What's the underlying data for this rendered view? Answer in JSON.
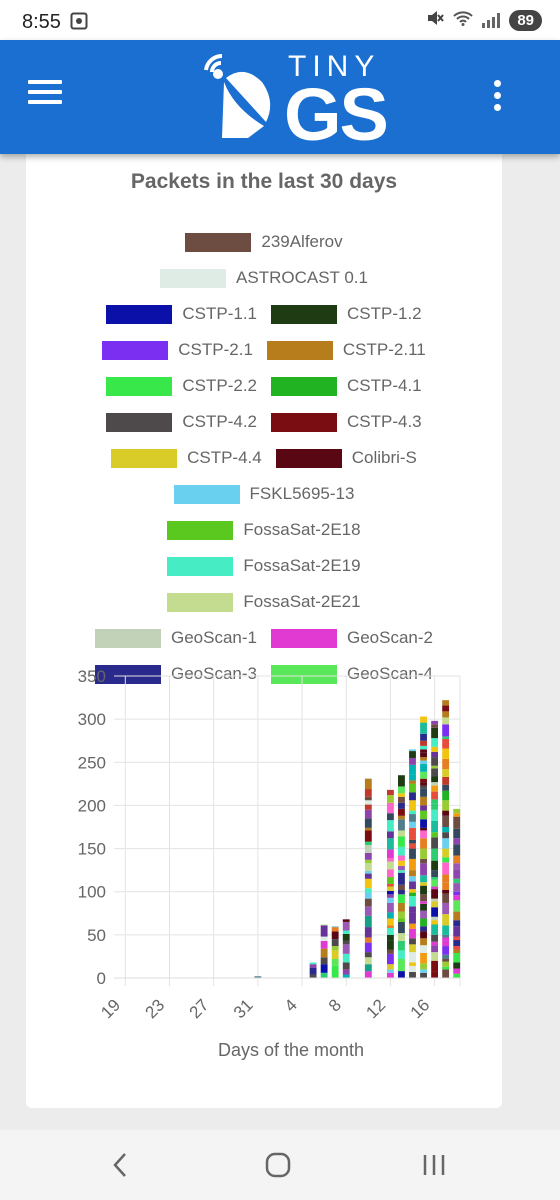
{
  "status_bar": {
    "time": "8:55",
    "battery": "89",
    "icons": [
      "screenshot-icon",
      "mute-icon",
      "wifi-icon",
      "signal-icon"
    ]
  },
  "app_bar": {
    "logo_top": "TINY",
    "logo_bottom": "GS",
    "menu_icon": "hamburger-menu-icon",
    "more_icon": "more-vertical-icon"
  },
  "card": {
    "title": "Packets in the last 30 days"
  },
  "legend": {
    "rows": [
      [
        {
          "label": "239Alferov",
          "color": "#6d4c41"
        }
      ],
      [
        {
          "label": "ASTROCAST 0.1",
          "color": "#dfece6"
        }
      ],
      [
        {
          "label": "CSTP-1.1",
          "color": "#0b10a8"
        },
        {
          "label": "CSTP-1.2",
          "color": "#1e3b14"
        }
      ],
      [
        {
          "label": "CSTP-2.1",
          "color": "#7b2ff0"
        },
        {
          "label": "CSTP-2.11",
          "color": "#b77d1c"
        }
      ],
      [
        {
          "label": "CSTP-2.2",
          "color": "#38e84a"
        },
        {
          "label": "CSTP-4.1",
          "color": "#21b322"
        }
      ],
      [
        {
          "label": "CSTP-4.2",
          "color": "#4e4a4c"
        },
        {
          "label": "CSTP-4.3",
          "color": "#7a0d12"
        }
      ],
      [
        {
          "label": "CSTP-4.4",
          "color": "#d9cc28"
        },
        {
          "label": "Colibri-S",
          "color": "#5a0714"
        }
      ],
      [
        {
          "label": "FSKL5695-13",
          "color": "#6ad0f0"
        }
      ],
      [
        {
          "label": "FossaSat-2E18",
          "color": "#5ac81e"
        }
      ],
      [
        {
          "label": "FossaSat-2E19",
          "color": "#46ecc4"
        }
      ],
      [
        {
          "label": "FossaSat-2E21",
          "color": "#c4dc90"
        }
      ],
      [
        {
          "label": "GeoScan-1",
          "color": "#c1d2b8"
        },
        {
          "label": "GeoScan-2",
          "color": "#e03ad2"
        }
      ],
      [
        {
          "label": "GeoScan-3",
          "color": "#2a2a8c"
        },
        {
          "label": "GeoScan-4",
          "color": "#5ae85a"
        }
      ]
    ]
  },
  "chart_data": {
    "type": "bar",
    "stacked": true,
    "xlabel": "Days of the month",
    "ylabel": "",
    "ylim": [
      0,
      350
    ],
    "yticks": [
      0,
      50,
      100,
      150,
      200,
      250,
      300,
      350
    ],
    "xtick_labels": [
      "19",
      "23",
      "27",
      "31",
      "4",
      "8",
      "12",
      "16"
    ],
    "xtick_positions": [
      0,
      4,
      8,
      12,
      16,
      20,
      24,
      28
    ],
    "grid": true,
    "categories": [
      "19",
      "20",
      "21",
      "22",
      "23",
      "24",
      "25",
      "26",
      "27",
      "28",
      "29",
      "30",
      "31",
      "1",
      "2",
      "3",
      "4",
      "5",
      "6",
      "7",
      "8",
      "9",
      "10",
      "11",
      "12",
      "13",
      "14",
      "15",
      "16",
      "17",
      "18"
    ],
    "totals": [
      0,
      0,
      0,
      0,
      0,
      0,
      0,
      0,
      0,
      0,
      0,
      0,
      2,
      0,
      0,
      0,
      0,
      18,
      62,
      60,
      68,
      0,
      232,
      0,
      218,
      235,
      265,
      303,
      298,
      322,
      196
    ]
  },
  "nav_bar": {
    "back_icon": "back-icon",
    "home_icon": "home-icon",
    "recents_icon": "recents-icon"
  }
}
